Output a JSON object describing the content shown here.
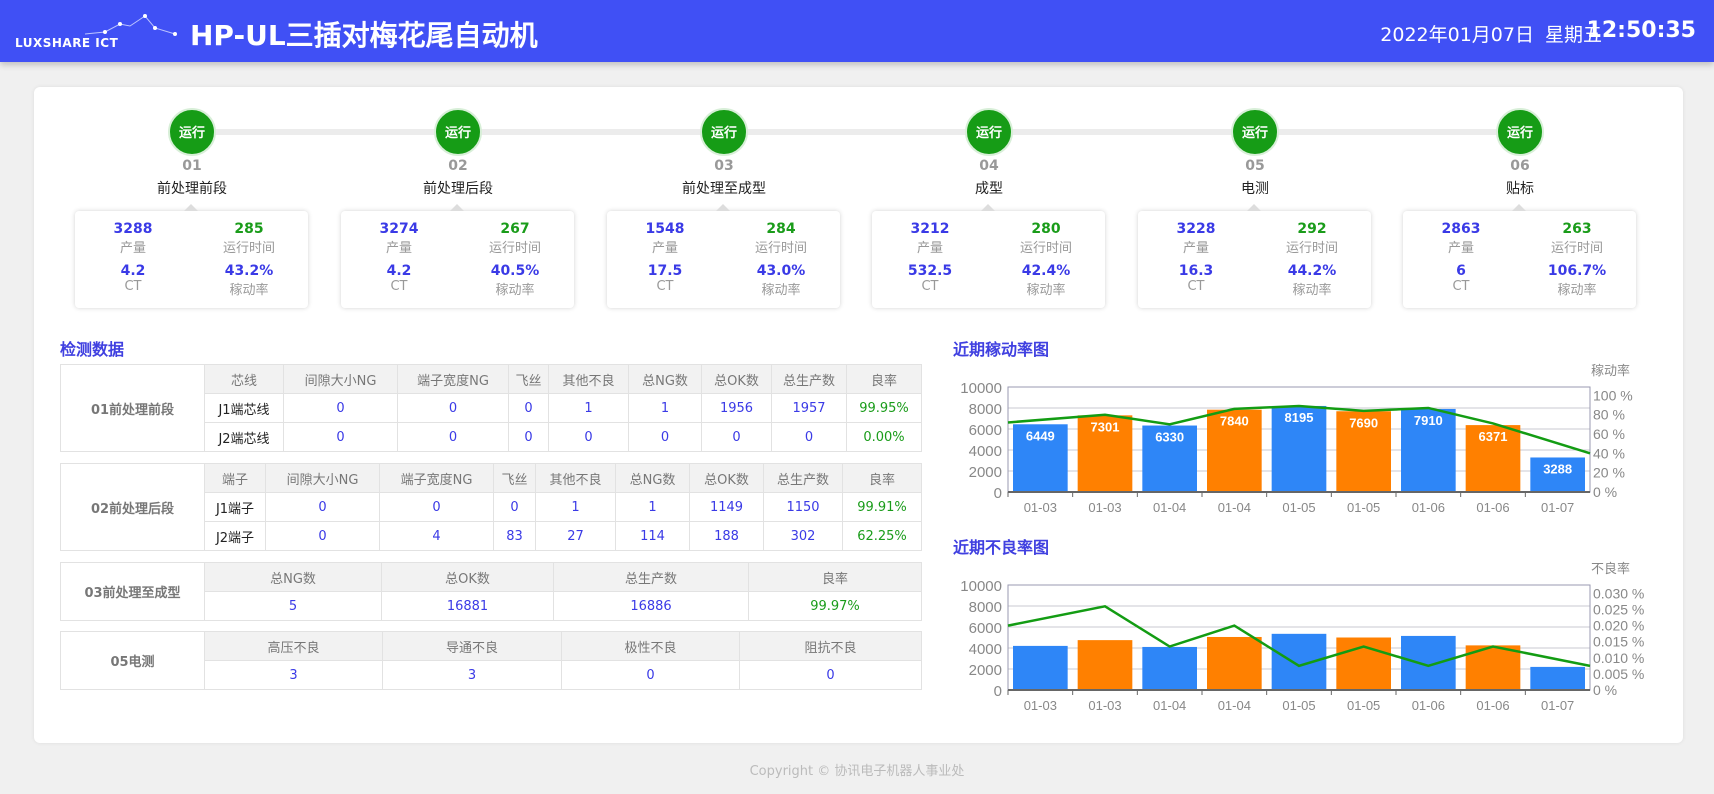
{
  "header": {
    "logo_text": "LUXSHARE ICT",
    "title": "HP-UL三插对梅花尾自动机",
    "date": "2022年01月07日",
    "weekday": "星期五",
    "time": "12:50:35"
  },
  "stations": [
    {
      "status": "运行",
      "num": "01",
      "name": "前处理前段",
      "output": "3288",
      "output_label": "产量",
      "runtime": "285",
      "runtime_label": "运行时间",
      "ct": "4.2",
      "ct_label": "CT",
      "rate": "43.2%",
      "rate_label": "稼动率"
    },
    {
      "status": "运行",
      "num": "02",
      "name": "前处理后段",
      "output": "3274",
      "output_label": "产量",
      "runtime": "267",
      "runtime_label": "运行时间",
      "ct": "4.2",
      "ct_label": "CT",
      "rate": "40.5%",
      "rate_label": "稼动率"
    },
    {
      "status": "运行",
      "num": "03",
      "name": "前处理至成型",
      "output": "1548",
      "output_label": "产量",
      "runtime": "284",
      "runtime_label": "运行时间",
      "ct": "17.5",
      "ct_label": "CT",
      "rate": "43.0%",
      "rate_label": "稼动率"
    },
    {
      "status": "运行",
      "num": "04",
      "name": "成型",
      "output": "3212",
      "output_label": "产量",
      "runtime": "280",
      "runtime_label": "运行时间",
      "ct": "532.5",
      "ct_label": "CT",
      "rate": "42.4%",
      "rate_label": "稼动率"
    },
    {
      "status": "运行",
      "num": "05",
      "name": "电测",
      "output": "3228",
      "output_label": "产量",
      "runtime": "292",
      "runtime_label": "运行时间",
      "ct": "16.3",
      "ct_label": "CT",
      "rate": "44.2%",
      "rate_label": "稼动率"
    },
    {
      "status": "运行",
      "num": "06",
      "name": "贴标",
      "output": "2863",
      "output_label": "产量",
      "runtime": "263",
      "runtime_label": "运行时间",
      "ct": "6",
      "ct_label": "CT",
      "rate": "106.7%",
      "rate_label": "稼动率"
    }
  ],
  "inspection": {
    "title": "检测数据",
    "t1": {
      "label": "01前处理前段",
      "headers": [
        "芯线",
        "间隙大小NG",
        "端子宽度NG",
        "飞丝",
        "其他不良",
        "总NG数",
        "总OK数",
        "总生产数",
        "良率"
      ],
      "rows": [
        [
          "J1端芯线",
          "0",
          "0",
          "0",
          "1",
          "1",
          "1956",
          "1957",
          "99.95%"
        ],
        [
          "J2端芯线",
          "0",
          "0",
          "0",
          "0",
          "0",
          "0",
          "0",
          "0.00%"
        ]
      ]
    },
    "t2": {
      "label": "02前处理后段",
      "headers": [
        "端子",
        "间隙大小NG",
        "端子宽度NG",
        "飞丝",
        "其他不良",
        "总NG数",
        "总OK数",
        "总生产数",
        "良率"
      ],
      "rows": [
        [
          "J1端子",
          "0",
          "0",
          "0",
          "1",
          "1",
          "1149",
          "1150",
          "99.91%"
        ],
        [
          "J2端子",
          "0",
          "4",
          "83",
          "27",
          "114",
          "188",
          "302",
          "62.25%"
        ]
      ]
    },
    "t3": {
      "label": "03前处理至成型",
      "headers": [
        "总NG数",
        "总OK数",
        "总生产数",
        "良率"
      ],
      "rows": [
        [
          "5",
          "16881",
          "16886",
          "99.97%"
        ]
      ]
    },
    "t4": {
      "label": "05电测",
      "headers": [
        "高压不良",
        "导通不良",
        "极性不良",
        "阻抗不良"
      ],
      "rows": [
        [
          "3",
          "3",
          "0",
          "0"
        ]
      ]
    }
  },
  "chart_data": [
    {
      "type": "bar",
      "title": "近期稼动率图",
      "categories": [
        "01-03",
        "01-03",
        "01-04",
        "01-04",
        "01-05",
        "01-05",
        "01-06",
        "01-06",
        "01-07"
      ],
      "values": [
        6449,
        7301,
        6330,
        7840,
        8195,
        7690,
        7910,
        6371,
        3288
      ],
      "bar_colors": [
        "#2e86f7",
        "#ff8000"
      ],
      "ylim": [
        0,
        10000
      ],
      "yticks": [
        0,
        2000,
        4000,
        6000,
        8000,
        10000
      ],
      "line": {
        "values": [
          72,
          80,
          70,
          86,
          89,
          84,
          87,
          71,
          40
        ],
        "color": "#139c13"
      },
      "y2label": "稼动率",
      "y2lim": [
        0,
        100
      ],
      "y2ticks": [
        "0 %",
        "20 %",
        "40 %",
        "60 %",
        "80 %",
        "100 %"
      ],
      "show_labels": true
    },
    {
      "type": "bar",
      "title": "近期不良率图",
      "categories": [
        "01-03",
        "01-03",
        "01-04",
        "01-04",
        "01-05",
        "01-05",
        "01-06",
        "01-06",
        "01-07"
      ],
      "values": [
        4200,
        4750,
        4100,
        5050,
        5350,
        5000,
        5150,
        4250,
        2200
      ],
      "bar_colors": [
        "#2e86f7",
        "#ff8000"
      ],
      "ylim": [
        0,
        10000
      ],
      "yticks": [
        0,
        2000,
        4000,
        6000,
        8000,
        10000
      ],
      "line": {
        "values": [
          0.02,
          0.026,
          0.0135,
          0.02,
          0.0075,
          0.0135,
          0.0075,
          0.0135,
          0.0075
        ],
        "color": "#139c13"
      },
      "y2label": "不良率",
      "y2lim": [
        0,
        0.03
      ],
      "y2ticks": [
        "0 %",
        "0.005 %",
        "0.010 %",
        "0.015 %",
        "0.020 %",
        "0.025 %",
        "0.030 %"
      ],
      "show_labels": false
    }
  ],
  "footer": "Copyright © 协讯电子机器人事业处"
}
